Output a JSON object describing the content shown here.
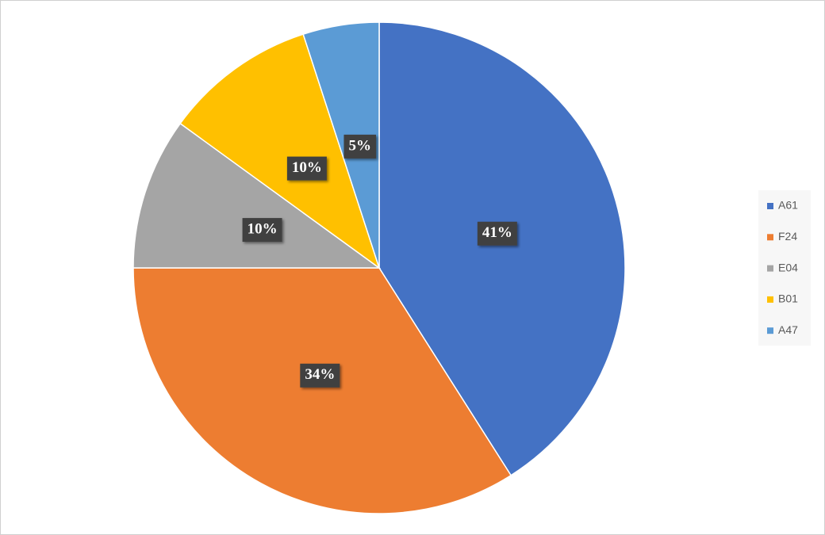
{
  "chart_data": {
    "type": "pie",
    "categories": [
      "A61",
      "F24",
      "E04",
      "B01",
      "A47"
    ],
    "values": [
      41,
      34,
      10,
      10,
      5
    ],
    "value_labels": [
      "41%",
      "34%",
      "10%",
      "10%",
      "5%"
    ],
    "colors": [
      "#4472c4",
      "#ed7d31",
      "#a5a5a5",
      "#ffc000",
      "#5b9bd5"
    ],
    "legend": "right"
  }
}
